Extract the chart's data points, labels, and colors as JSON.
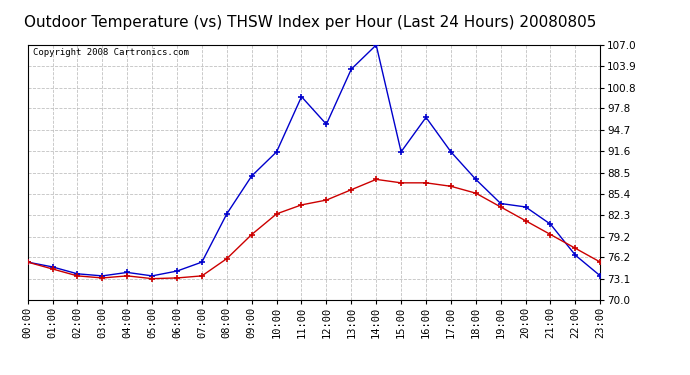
{
  "title": "Outdoor Temperature (vs) THSW Index per Hour (Last 24 Hours) 20080805",
  "copyright": "Copyright 2008 Cartronics.com",
  "hours": [
    "00:00",
    "01:00",
    "02:00",
    "03:00",
    "04:00",
    "05:00",
    "06:00",
    "07:00",
    "08:00",
    "09:00",
    "10:00",
    "11:00",
    "12:00",
    "13:00",
    "14:00",
    "15:00",
    "16:00",
    "17:00",
    "18:00",
    "19:00",
    "20:00",
    "21:00",
    "22:00",
    "23:00"
  ],
  "temp": [
    75.5,
    74.5,
    73.5,
    73.2,
    73.5,
    73.1,
    73.2,
    73.5,
    76.0,
    79.5,
    82.5,
    83.8,
    84.5,
    86.0,
    87.5,
    87.0,
    87.0,
    86.5,
    85.5,
    83.5,
    81.5,
    79.5,
    77.5,
    75.5
  ],
  "thsw": [
    75.5,
    74.8,
    73.8,
    73.5,
    74.0,
    73.5,
    74.2,
    75.5,
    82.5,
    88.0,
    91.5,
    99.5,
    95.5,
    103.5,
    107.0,
    91.5,
    96.5,
    91.5,
    87.5,
    84.0,
    83.5,
    81.0,
    76.5,
    73.5
  ],
  "temp_color": "#cc0000",
  "thsw_color": "#0000cc",
  "ymin": 70.0,
  "ymax": 107.0,
  "yticks": [
    70.0,
    73.1,
    76.2,
    79.2,
    82.3,
    85.4,
    88.5,
    91.6,
    94.7,
    97.8,
    100.8,
    103.9,
    107.0
  ],
  "bg_color": "#ffffff",
  "plot_bg": "#ffffff",
  "grid_color": "#bbbbbb",
  "title_fontsize": 11,
  "tick_fontsize": 7.5,
  "copyright_fontsize": 6.5
}
